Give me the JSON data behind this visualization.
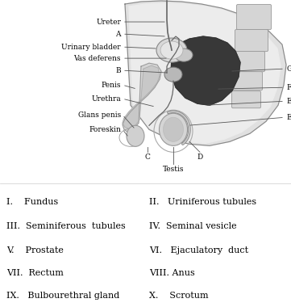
{
  "bg_color": "#ffffff",
  "fig_width": 3.61,
  "fig_height": 3.8,
  "dpi": 100,
  "label_fontsize": 6.5,
  "list_fontsize": 8.0,
  "list_items_left": [
    "I.    Fundus",
    "III.  Seminiferous  tubules",
    "V.    Prostate",
    "VII.  Rectum",
    "IX.   Bulbourethral gland"
  ],
  "list_items_right": [
    "II.   Uriniferous tubules",
    "IV.  Seminal vesicle",
    "VI.   Ejaculatory  duct",
    "VIII. Anus",
    "X.    Scrotum"
  ]
}
